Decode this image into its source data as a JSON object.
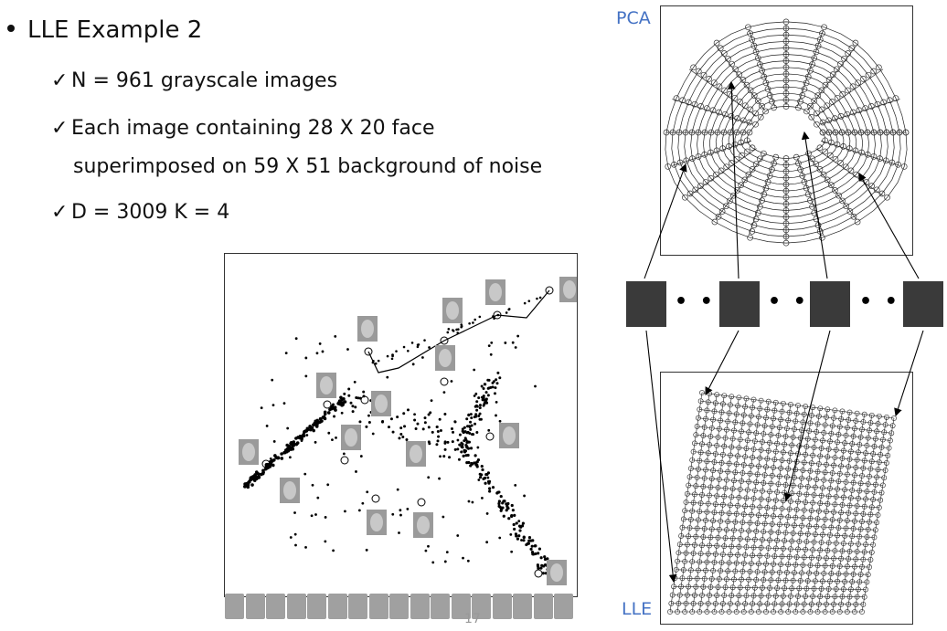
{
  "bullet": "LLE Example 2",
  "points": [
    "N = 961 grayscale images",
    "Each image containing 28 X 20 face",
    "superimposed on 59 X 51 background of noise",
    "D = 3009 K = 4"
  ],
  "check_symbol": "✓",
  "labels": {
    "pca": "PCA",
    "lle": "LLE"
  },
  "ellipsis": "• • •",
  "page_number": "17"
}
